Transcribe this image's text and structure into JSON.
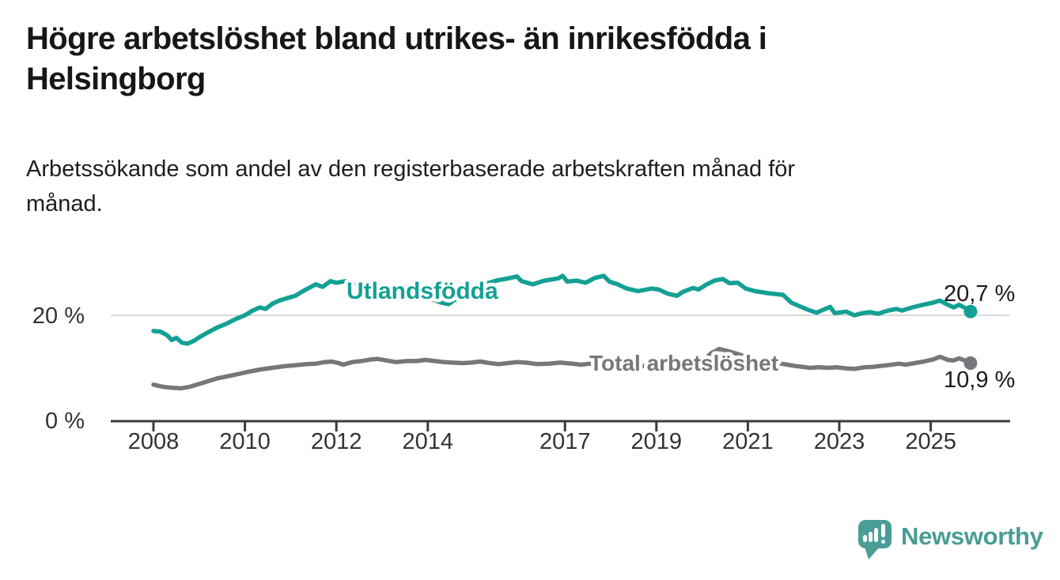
{
  "header": {
    "title_line1": "Högre arbetslöshet bland utrikes- än inrikesfödda i",
    "title_line2": "Helsingborg",
    "subtitle_line1": "Arbetssökande som andel av den registerbaserade arbetskraften månad för",
    "subtitle_line2": "månad."
  },
  "branding": {
    "logo_text": "Newsworthy",
    "logo_icon": "speech-bubble-bar-chart-icon",
    "brand_color": "#4a9c96"
  },
  "chart_data": {
    "type": "line",
    "unit": "%",
    "grid": "horizontal-only",
    "legend_position": "inline-labels-on-lines",
    "x_axis": {
      "ticks": [
        2008,
        2010,
        2012,
        2014,
        2017,
        2019,
        2021,
        2023,
        2025
      ],
      "range": [
        2007.1,
        2026.7
      ]
    },
    "y_axis": {
      "ticks": [
        {
          "value": 0,
          "label": "0 %"
        },
        {
          "value": 20,
          "label": "20 %"
        }
      ],
      "gridlines": [
        20
      ],
      "range": [
        0,
        30
      ]
    },
    "series": [
      {
        "name": "Utlandsfödda",
        "label_text": "Utlandsfödda",
        "end_label": "20,7 %",
        "end_value": 20.7,
        "color": "#14a094",
        "points": [
          [
            2008.0,
            17.0
          ],
          [
            2008.15,
            16.9
          ],
          [
            2008.3,
            16.2
          ],
          [
            2008.4,
            15.3
          ],
          [
            2008.5,
            15.7
          ],
          [
            2008.62,
            14.8
          ],
          [
            2008.75,
            14.6
          ],
          [
            2008.9,
            15.2
          ],
          [
            2009.0,
            15.8
          ],
          [
            2009.2,
            16.8
          ],
          [
            2009.4,
            17.7
          ],
          [
            2009.6,
            18.4
          ],
          [
            2009.8,
            19.3
          ],
          [
            2010.0,
            20.0
          ],
          [
            2010.17,
            20.9
          ],
          [
            2010.33,
            21.5
          ],
          [
            2010.45,
            21.2
          ],
          [
            2010.6,
            22.2
          ],
          [
            2010.75,
            22.8
          ],
          [
            2010.9,
            23.2
          ],
          [
            2011.1,
            23.7
          ],
          [
            2011.25,
            24.5
          ],
          [
            2011.4,
            25.2
          ],
          [
            2011.55,
            25.9
          ],
          [
            2011.7,
            25.4
          ],
          [
            2011.87,
            26.5
          ],
          [
            2012.0,
            26.2
          ],
          [
            2012.2,
            26.5
          ],
          [
            2012.4,
            26.0
          ],
          [
            2012.6,
            25.7
          ],
          [
            2012.8,
            25.9
          ],
          [
            2013.0,
            25.6
          ],
          [
            2013.3,
            25.2
          ],
          [
            2013.6,
            24.8
          ],
          [
            2013.9,
            23.8
          ],
          [
            2014.1,
            23.0
          ],
          [
            2014.3,
            22.4
          ],
          [
            2014.45,
            22.1
          ],
          [
            2014.6,
            23.0
          ],
          [
            2014.8,
            24.2
          ],
          [
            2015.0,
            25.2
          ],
          [
            2015.2,
            25.8
          ],
          [
            2015.5,
            26.6
          ],
          [
            2015.8,
            27.1
          ],
          [
            2015.95,
            27.4
          ],
          [
            2016.05,
            26.5
          ],
          [
            2016.3,
            25.9
          ],
          [
            2016.55,
            26.6
          ],
          [
            2016.85,
            27.0
          ],
          [
            2016.95,
            27.5
          ],
          [
            2017.05,
            26.4
          ],
          [
            2017.25,
            26.6
          ],
          [
            2017.45,
            26.2
          ],
          [
            2017.65,
            27.1
          ],
          [
            2017.85,
            27.5
          ],
          [
            2017.97,
            26.4
          ],
          [
            2018.15,
            25.9
          ],
          [
            2018.35,
            25.1
          ],
          [
            2018.6,
            24.6
          ],
          [
            2018.78,
            24.9
          ],
          [
            2018.9,
            25.1
          ],
          [
            2019.05,
            24.9
          ],
          [
            2019.25,
            24.1
          ],
          [
            2019.45,
            23.7
          ],
          [
            2019.57,
            24.4
          ],
          [
            2019.8,
            25.2
          ],
          [
            2019.92,
            24.9
          ],
          [
            2020.1,
            25.9
          ],
          [
            2020.27,
            26.6
          ],
          [
            2020.45,
            26.9
          ],
          [
            2020.6,
            26.1
          ],
          [
            2020.78,
            26.2
          ],
          [
            2020.95,
            25.1
          ],
          [
            2021.15,
            24.6
          ],
          [
            2021.45,
            24.2
          ],
          [
            2021.77,
            23.9
          ],
          [
            2021.95,
            22.4
          ],
          [
            2022.3,
            21.1
          ],
          [
            2022.5,
            20.5
          ],
          [
            2022.8,
            21.6
          ],
          [
            2022.9,
            20.4
          ],
          [
            2023.15,
            20.7
          ],
          [
            2023.33,
            20.0
          ],
          [
            2023.5,
            20.4
          ],
          [
            2023.67,
            20.6
          ],
          [
            2023.85,
            20.3
          ],
          [
            2024.07,
            20.9
          ],
          [
            2024.25,
            21.2
          ],
          [
            2024.37,
            20.9
          ],
          [
            2024.6,
            21.5
          ],
          [
            2024.83,
            22.0
          ],
          [
            2025.05,
            22.4
          ],
          [
            2025.2,
            22.8
          ],
          [
            2025.4,
            21.9
          ],
          [
            2025.5,
            21.5
          ],
          [
            2025.62,
            22.0
          ],
          [
            2025.75,
            21.4
          ],
          [
            2025.87,
            20.7
          ]
        ]
      },
      {
        "name": "Total arbetslöshet",
        "label_text": "Total arbetslöshet",
        "end_label": "10,9 %",
        "end_value": 10.9,
        "color": "#76777b",
        "points": [
          [
            2008.0,
            6.8
          ],
          [
            2008.2,
            6.4
          ],
          [
            2008.4,
            6.2
          ],
          [
            2008.6,
            6.1
          ],
          [
            2008.8,
            6.4
          ],
          [
            2009.1,
            7.2
          ],
          [
            2009.4,
            8.0
          ],
          [
            2009.8,
            8.7
          ],
          [
            2010.1,
            9.3
          ],
          [
            2010.35,
            9.7
          ],
          [
            2010.6,
            10.0
          ],
          [
            2010.85,
            10.3
          ],
          [
            2011.1,
            10.5
          ],
          [
            2011.35,
            10.7
          ],
          [
            2011.55,
            10.8
          ],
          [
            2011.75,
            11.1
          ],
          [
            2011.9,
            11.2
          ],
          [
            2012.05,
            10.9
          ],
          [
            2012.15,
            10.6
          ],
          [
            2012.35,
            11.1
          ],
          [
            2012.55,
            11.3
          ],
          [
            2012.75,
            11.6
          ],
          [
            2012.9,
            11.7
          ],
          [
            2013.1,
            11.4
          ],
          [
            2013.3,
            11.1
          ],
          [
            2013.55,
            11.3
          ],
          [
            2013.75,
            11.3
          ],
          [
            2013.95,
            11.5
          ],
          [
            2014.15,
            11.3
          ],
          [
            2014.35,
            11.1
          ],
          [
            2014.55,
            11.0
          ],
          [
            2014.75,
            10.9
          ],
          [
            2014.95,
            11.0
          ],
          [
            2015.15,
            11.2
          ],
          [
            2015.35,
            10.9
          ],
          [
            2015.55,
            10.7
          ],
          [
            2015.75,
            10.9
          ],
          [
            2015.95,
            11.1
          ],
          [
            2016.15,
            11.0
          ],
          [
            2016.4,
            10.7
          ],
          [
            2016.65,
            10.8
          ],
          [
            2016.9,
            11.0
          ],
          [
            2017.15,
            10.8
          ],
          [
            2017.35,
            10.6
          ],
          [
            2017.55,
            10.8
          ],
          [
            2017.85,
            10.9
          ],
          [
            2018.2,
            10.5
          ],
          [
            2018.6,
            10.3
          ],
          [
            2019.0,
            10.4
          ],
          [
            2019.4,
            10.2
          ],
          [
            2019.8,
            10.6
          ],
          [
            2020.0,
            11.2
          ],
          [
            2020.2,
            12.8
          ],
          [
            2020.38,
            13.6
          ],
          [
            2020.6,
            13.1
          ],
          [
            2020.9,
            12.3
          ],
          [
            2021.2,
            11.6
          ],
          [
            2021.6,
            11.0
          ],
          [
            2022.0,
            10.4
          ],
          [
            2022.35,
            10.0
          ],
          [
            2022.55,
            10.1
          ],
          [
            2022.75,
            10.0
          ],
          [
            2022.95,
            10.1
          ],
          [
            2023.15,
            9.9
          ],
          [
            2023.33,
            9.8
          ],
          [
            2023.55,
            10.1
          ],
          [
            2023.75,
            10.2
          ],
          [
            2023.95,
            10.4
          ],
          [
            2024.15,
            10.6
          ],
          [
            2024.3,
            10.8
          ],
          [
            2024.45,
            10.6
          ],
          [
            2024.65,
            10.9
          ],
          [
            2024.85,
            11.2
          ],
          [
            2025.05,
            11.6
          ],
          [
            2025.2,
            12.1
          ],
          [
            2025.38,
            11.5
          ],
          [
            2025.5,
            11.4
          ],
          [
            2025.62,
            11.8
          ],
          [
            2025.75,
            11.4
          ],
          [
            2025.87,
            10.9
          ]
        ]
      }
    ]
  }
}
